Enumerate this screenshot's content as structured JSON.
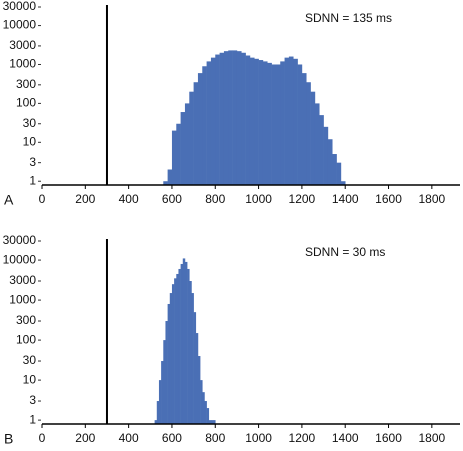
{
  "chart_data": [
    {
      "type": "histogram",
      "label": "A",
      "annotation": "SDNN = 135 ms",
      "color": "#4a6fb5",
      "log_y": true,
      "vline": 300,
      "bins": [
        560,
        580,
        600,
        620,
        640,
        660,
        680,
        700,
        720,
        740,
        760,
        780,
        800,
        820,
        840,
        860,
        880,
        900,
        920,
        940,
        960,
        980,
        1000,
        1020,
        1040,
        1060,
        1080,
        1100,
        1120,
        1140,
        1160,
        1180,
        1200,
        1220,
        1240,
        1260,
        1280,
        1300,
        1320,
        1340,
        1360,
        1380,
        1400
      ],
      "counts": [
        1,
        2,
        20,
        30,
        60,
        100,
        200,
        350,
        600,
        900,
        1200,
        1500,
        1800,
        2000,
        2200,
        2300,
        2300,
        2200,
        2000,
        1700,
        1500,
        1400,
        1300,
        1200,
        1100,
        1000,
        1000,
        1200,
        1500,
        1600,
        1400,
        1000,
        600,
        350,
        200,
        100,
        50,
        25,
        12,
        5,
        3,
        1
      ],
      "xlim": [
        0,
        1930
      ],
      "xticks": [
        0,
        200,
        400,
        600,
        800,
        1000,
        1200,
        1400,
        1600,
        1800
      ],
      "ylim": [
        0.8,
        30000
      ],
      "yticks": [
        1,
        3,
        10,
        30,
        100,
        300,
        1000,
        3000,
        10000,
        30000
      ]
    },
    {
      "type": "histogram",
      "label": "B",
      "annotation": "SDNN = 30 ms",
      "color": "#4a6fb5",
      "log_y": true,
      "vline": 300,
      "bins": [
        520,
        530,
        540,
        550,
        560,
        570,
        580,
        590,
        600,
        610,
        620,
        630,
        640,
        650,
        660,
        670,
        680,
        690,
        700,
        710,
        720,
        730,
        740,
        750,
        760,
        770,
        780,
        790,
        800
      ],
      "counts": [
        1,
        3,
        10,
        30,
        100,
        300,
        800,
        1500,
        2500,
        3500,
        4500,
        6000,
        8000,
        11000,
        9000,
        6000,
        3000,
        1500,
        500,
        150,
        40,
        10,
        5,
        3,
        2,
        1,
        1,
        1
      ],
      "xlim": [
        0,
        1930
      ],
      "xticks": [
        0,
        200,
        400,
        600,
        800,
        1000,
        1200,
        1400,
        1600,
        1800
      ],
      "ylim": [
        0.8,
        30000
      ],
      "yticks": [
        1,
        3,
        10,
        30,
        100,
        300,
        1000,
        3000,
        10000,
        30000
      ]
    }
  ]
}
